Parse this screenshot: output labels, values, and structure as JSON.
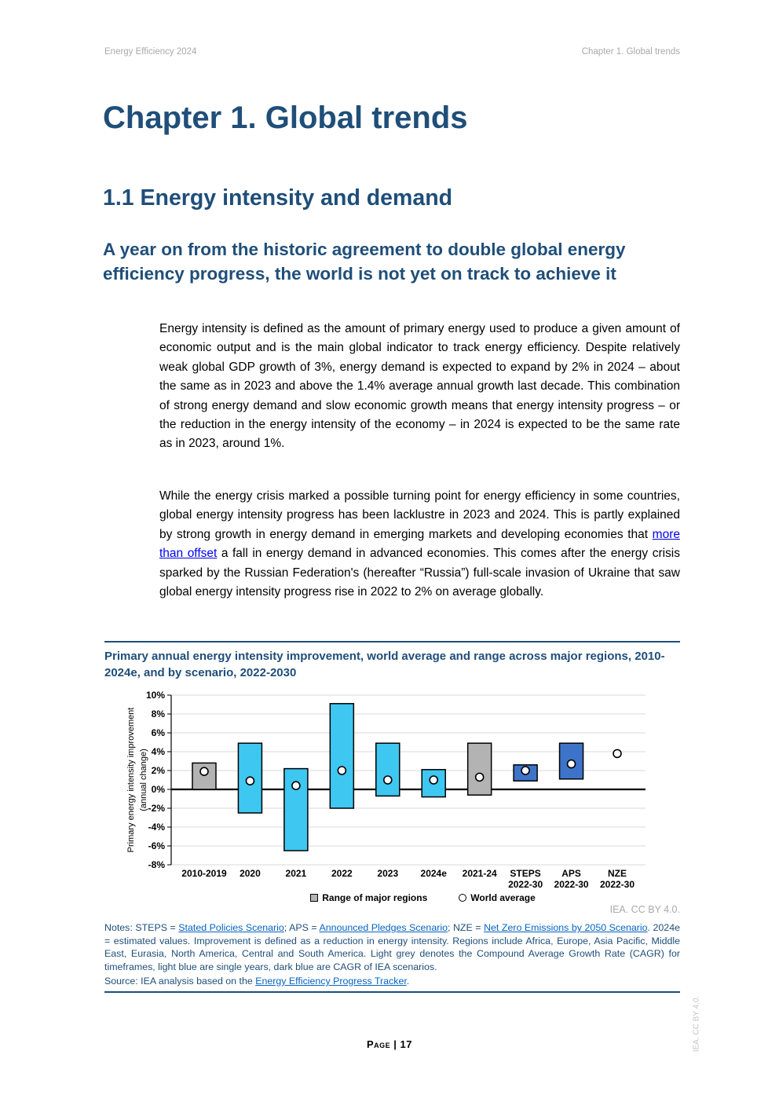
{
  "page": {
    "header_left": "Energy Efficiency 2024",
    "header_right": "Chapter 1. Global trends",
    "chapter_title": "Chapter 1. Global trends",
    "section_title": "1.1 Energy intensity and demand",
    "subsection_title": "A year on from the historic agreement to double global energy efficiency progress, the world is not yet on track to achieve it",
    "paragraph1": [
      {
        "t": "Energy intensity is defined as the amount of primary energy used to produce a given amount of economic output and is the main global indicator to track energy efficiency. Despite relatively weak global GDP growth of 3%, energy demand is expected to expand by 2% in 2024 – about the same as in 2023 and above the 1.4% average annual growth last decade. This combination of strong energy demand and slow economic growth means that energy intensity progress – or the reduction in the energy intensity of the economy – in 2024 is expected to be the same rate as in 2023, around 1%.",
        "link": false
      }
    ],
    "paragraph2": [
      {
        "t": "While the energy crisis marked a possible turning point for energy efficiency in some countries, global energy intensity progress has been lacklustre in 2023 and 2024. This is partly explained by strong growth in energy demand in emerging markets and developing economies that ",
        "link": false
      },
      {
        "t": "more than offset",
        "link": true
      },
      {
        "t": " a fall in energy demand in advanced economies. This comes after the energy crisis sparked by the Russian Federation's (hereafter “Russia”) full-scale invasion of Ukraine that saw global energy intensity progress rise in 2022 to 2% on average globally.",
        "link": false
      }
    ],
    "footer": "Page | 17",
    "side_note": "IEA. CC BY 4.0."
  },
  "figure": {
    "title": "Primary annual energy intensity improvement, world average and range across major regions, 2010-2024e, and by scenario, 2022-2030",
    "attribution": "IEA. CC BY 4.0.",
    "legend": [
      {
        "label": "Range of major regions",
        "marker": "square"
      },
      {
        "label": "World average",
        "marker": "circle"
      }
    ],
    "notes_segments": [
      {
        "t": "Notes: STEPS = ",
        "link": false
      },
      {
        "t": "Stated Policies Scenario",
        "link": true
      },
      {
        "t": "; APS = ",
        "link": false
      },
      {
        "t": "Announced Pledges Scenario",
        "link": true
      },
      {
        "t": "; NZE = ",
        "link": false
      },
      {
        "t": "Net Zero Emissions by 2050 Scenario",
        "link": true
      },
      {
        "t": ". 2024e = estimated values. Improvement is defined as a reduction in energy intensity. Regions include Africa, Europe, Asia Pacific, Middle East, Eurasia, North America, Central and South America. Light grey denotes the Compound Average Growth Rate (CAGR) for timeframes, light blue are single years, dark blue are CAGR of IEA scenarios.",
        "link": false
      }
    ],
    "source_segments": [
      {
        "t": "Source: IEA analysis based on the ",
        "link": false
      },
      {
        "t": "Energy Efficiency Progress Tracker",
        "link": true
      },
      {
        "t": ".",
        "link": false
      }
    ]
  },
  "chart_data": {
    "type": "bar",
    "subtype": "floating-range-bars-with-average-points",
    "title": "Primary annual energy intensity improvement, world average and range across major regions, 2010-2024e, and by scenario, 2022-2030",
    "xlabel": "",
    "ylabel": "Primary energy intensity improvement (annual change)",
    "ylabel_lines": [
      "Primary energy intensity improvement",
      "(annual change)"
    ],
    "ylim": [
      -8,
      10
    ],
    "ytick_step": 2,
    "ytick_suffix": "%",
    "grid": true,
    "legend_position": "bottom",
    "categories": [
      "2010-2019",
      "2020",
      "2021",
      "2022",
      "2023",
      "2024e",
      "2021-24",
      "STEPS 2022-30",
      "APS 2022-30",
      "NZE 2022-30"
    ],
    "category_label_lines": [
      [
        "2010-2019"
      ],
      [
        "2020"
      ],
      [
        "2021"
      ],
      [
        "2022"
      ],
      [
        "2023"
      ],
      [
        "2024e"
      ],
      [
        "2021-24"
      ],
      [
        "STEPS",
        "2022-30"
      ],
      [
        "APS",
        "2022-30"
      ],
      [
        "NZE",
        "2022-30"
      ]
    ],
    "series": [
      {
        "name": "Range of major regions",
        "type": "range-bar",
        "low": [
          0,
          -2.5,
          -6.5,
          -2.0,
          -0.7,
          -0.8,
          -0.6,
          0.9,
          1.1,
          null
        ],
        "high": [
          2.8,
          4.9,
          2.2,
          9.1,
          4.9,
          2.1,
          4.9,
          2.6,
          4.9,
          null
        ],
        "bar_colors": [
          "grey",
          "cyan",
          "cyan",
          "cyan",
          "cyan",
          "cyan",
          "grey",
          "blue",
          "blue",
          null
        ]
      },
      {
        "name": "World average",
        "type": "point",
        "values": [
          1.9,
          0.9,
          0.4,
          2.0,
          1.0,
          1.0,
          1.3,
          2.0,
          2.7,
          3.8
        ]
      }
    ],
    "color_meaning": {
      "grey": "CAGR for timeframes",
      "cyan": "single years",
      "blue": "CAGR of IEA scenarios"
    }
  },
  "colors": {
    "heading_navy": "#1F4E79",
    "bar_grey": "#B3B3B3",
    "bar_cyan": "#3EC7F0",
    "bar_blue": "#3D74C9",
    "gridline": "#D9D9D9",
    "axis": "#000000",
    "notes_link": "#0563C1",
    "body_link": "#0000EE",
    "muted_grey": "#A9A9A9"
  }
}
